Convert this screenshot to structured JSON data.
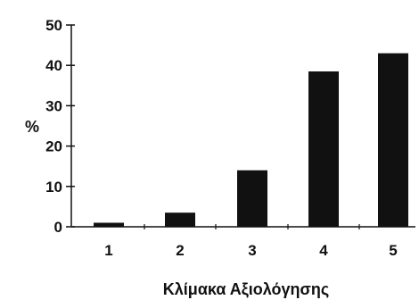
{
  "chart_data": {
    "type": "bar",
    "categories": [
      "1",
      "2",
      "3",
      "4",
      "5"
    ],
    "values": [
      1,
      3.5,
      14,
      38.5,
      43
    ],
    "title": "",
    "xlabel": "Κλίμακα Αξιολόγησης",
    "ylabel": "%",
    "ylim": [
      0,
      50
    ],
    "yticks": [
      "0",
      "10",
      "20",
      "30",
      "40",
      "50"
    ],
    "grid": false,
    "legend": "none",
    "bar_color": "#111111"
  }
}
